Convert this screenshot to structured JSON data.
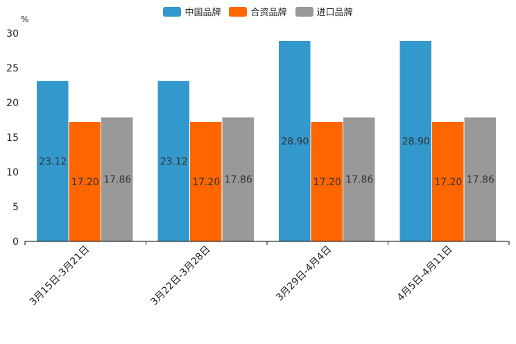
{
  "chart_data": {
    "type": "bar",
    "unit": "%",
    "categories": [
      "3月15日-3月21日",
      "3月22日-3月28日",
      "3月29日-4月4日",
      "4月5日-4月11日"
    ],
    "series": [
      {
        "name": "中国品牌",
        "color": "#3399cc",
        "values": [
          23.12,
          23.12,
          28.9,
          28.9
        ]
      },
      {
        "name": "合资品牌",
        "color": "#ff6600",
        "values": [
          17.2,
          17.2,
          17.2,
          17.2
        ]
      },
      {
        "name": "进口品牌",
        "color": "#999999",
        "values": [
          17.86,
          17.86,
          17.86,
          17.86
        ]
      }
    ],
    "ylim": [
      0,
      30
    ],
    "yticks": [
      0,
      5,
      10,
      15,
      20,
      25,
      30
    ],
    "legend": "top-center"
  }
}
